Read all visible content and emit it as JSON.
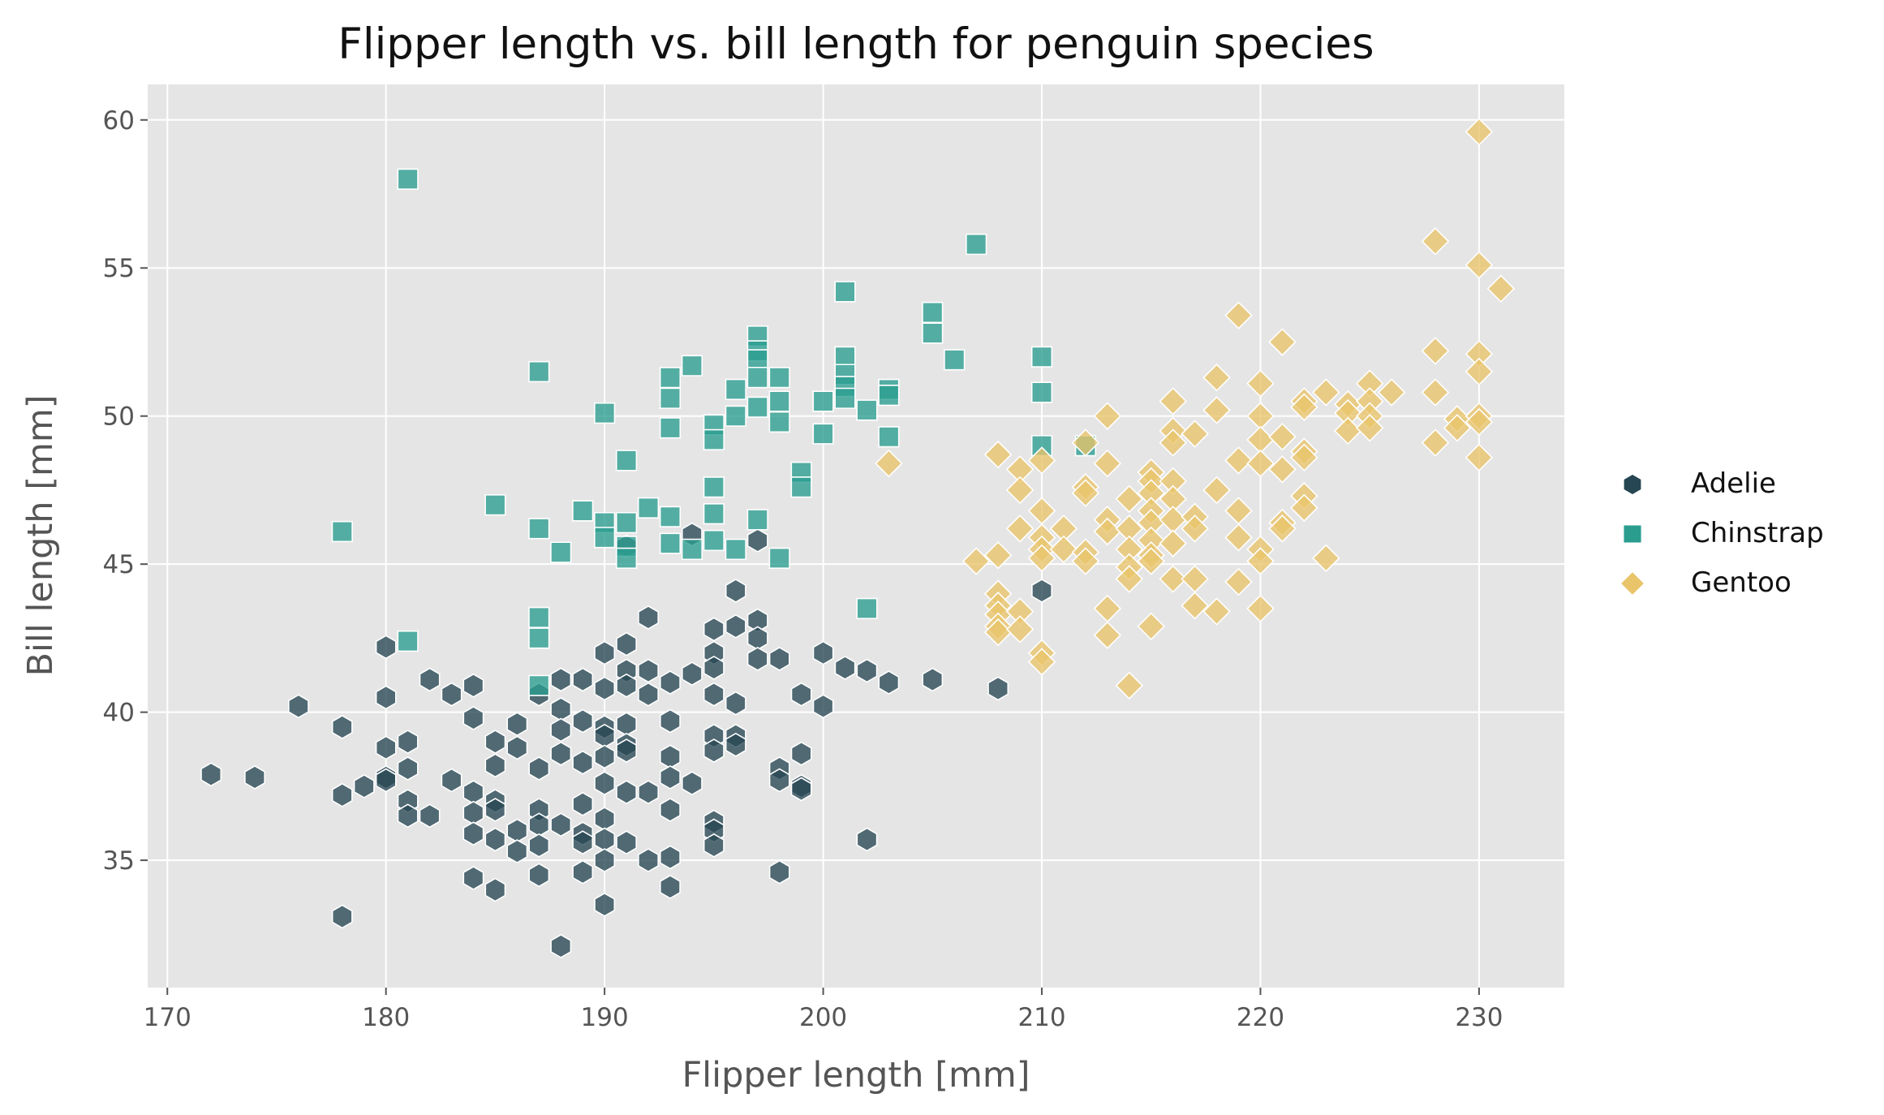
{
  "chart_data": {
    "type": "scatter",
    "title": "Flipper length vs. bill length for penguin species",
    "xlabel": "Flipper length [mm]",
    "ylabel": "Bill length [mm]",
    "xlim": [
      169.1,
      233.9
    ],
    "ylim": [
      30.7,
      61.2
    ],
    "xticks": [
      170,
      180,
      190,
      200,
      210,
      220,
      230
    ],
    "yticks": [
      35,
      40,
      45,
      50,
      55,
      60
    ],
    "grid": true,
    "legend_position": "right",
    "series": [
      {
        "name": "Adelie",
        "marker": "hexagon",
        "color": "#264653",
        "points": [
          [
            172,
            37.9
          ],
          [
            174,
            37.8
          ],
          [
            176,
            40.2
          ],
          [
            178,
            39.5
          ],
          [
            178,
            37.2
          ],
          [
            178,
            33.1
          ],
          [
            179,
            37.5
          ],
          [
            180,
            42.2
          ],
          [
            180,
            40.5
          ],
          [
            180,
            38.8
          ],
          [
            180,
            37.8
          ],
          [
            180,
            37.7
          ],
          [
            181,
            39.0
          ],
          [
            181,
            38.1
          ],
          [
            181,
            37.0
          ],
          [
            181,
            36.5
          ],
          [
            182,
            41.1
          ],
          [
            182,
            36.5
          ],
          [
            183,
            40.6
          ],
          [
            183,
            37.7
          ],
          [
            184,
            40.9
          ],
          [
            184,
            39.8
          ],
          [
            184,
            37.3
          ],
          [
            184,
            36.6
          ],
          [
            184,
            35.9
          ],
          [
            184,
            34.4
          ],
          [
            185,
            39.0
          ],
          [
            185,
            38.2
          ],
          [
            185,
            37.0
          ],
          [
            185,
            36.7
          ],
          [
            185,
            35.7
          ],
          [
            185,
            34.0
          ],
          [
            186,
            39.6
          ],
          [
            186,
            38.8
          ],
          [
            186,
            36.0
          ],
          [
            186,
            35.3
          ],
          [
            187,
            40.6
          ],
          [
            187,
            38.1
          ],
          [
            187,
            36.7
          ],
          [
            187,
            36.2
          ],
          [
            187,
            35.5
          ],
          [
            187,
            34.5
          ],
          [
            188,
            41.1
          ],
          [
            188,
            40.1
          ],
          [
            188,
            39.4
          ],
          [
            188,
            38.6
          ],
          [
            188,
            36.2
          ],
          [
            188,
            32.1
          ],
          [
            189,
            41.1
          ],
          [
            189,
            39.7
          ],
          [
            189,
            38.3
          ],
          [
            189,
            36.9
          ],
          [
            189,
            35.9
          ],
          [
            189,
            35.6
          ],
          [
            189,
            34.6
          ],
          [
            190,
            42.0
          ],
          [
            190,
            40.8
          ],
          [
            190,
            39.5
          ],
          [
            190,
            39.2
          ],
          [
            190,
            38.5
          ],
          [
            190,
            37.6
          ],
          [
            190,
            36.4
          ],
          [
            190,
            35.7
          ],
          [
            190,
            35.0
          ],
          [
            190,
            33.5
          ],
          [
            191,
            45.6
          ],
          [
            191,
            42.3
          ],
          [
            191,
            41.4
          ],
          [
            191,
            40.9
          ],
          [
            191,
            39.6
          ],
          [
            191,
            38.9
          ],
          [
            191,
            38.7
          ],
          [
            191,
            37.3
          ],
          [
            191,
            35.6
          ],
          [
            192,
            43.2
          ],
          [
            192,
            41.4
          ],
          [
            192,
            40.6
          ],
          [
            192,
            37.3
          ],
          [
            192,
            35.0
          ],
          [
            193,
            41.0
          ],
          [
            193,
            39.7
          ],
          [
            193,
            38.5
          ],
          [
            193,
            37.8
          ],
          [
            193,
            36.7
          ],
          [
            193,
            35.1
          ],
          [
            193,
            34.1
          ],
          [
            194,
            46.0
          ],
          [
            194,
            41.3
          ],
          [
            194,
            37.6
          ],
          [
            195,
            42.8
          ],
          [
            195,
            42.0
          ],
          [
            195,
            41.5
          ],
          [
            195,
            40.6
          ],
          [
            195,
            39.2
          ],
          [
            195,
            38.7
          ],
          [
            195,
            36.3
          ],
          [
            195,
            36.0
          ],
          [
            195,
            35.5
          ],
          [
            196,
            44.1
          ],
          [
            196,
            42.9
          ],
          [
            196,
            40.3
          ],
          [
            196,
            39.2
          ],
          [
            196,
            38.9
          ],
          [
            197,
            45.8
          ],
          [
            197,
            43.1
          ],
          [
            197,
            42.5
          ],
          [
            197,
            41.8
          ],
          [
            198,
            41.8
          ],
          [
            198,
            38.1
          ],
          [
            198,
            37.7
          ],
          [
            198,
            34.6
          ],
          [
            199,
            40.6
          ],
          [
            199,
            38.6
          ],
          [
            199,
            37.5
          ],
          [
            199,
            37.4
          ],
          [
            200,
            42.0
          ],
          [
            200,
            40.2
          ],
          [
            201,
            41.5
          ],
          [
            202,
            41.4
          ],
          [
            202,
            35.7
          ],
          [
            203,
            41.0
          ],
          [
            205,
            41.1
          ],
          [
            208,
            40.8
          ],
          [
            210,
            44.1
          ]
        ]
      },
      {
        "name": "Chinstrap",
        "marker": "square",
        "color": "#2a9d8f",
        "points": [
          [
            178,
            46.1
          ],
          [
            181,
            58.0
          ],
          [
            181,
            42.4
          ],
          [
            185,
            47.0
          ],
          [
            187,
            51.5
          ],
          [
            187,
            46.2
          ],
          [
            187,
            43.2
          ],
          [
            187,
            42.5
          ],
          [
            187,
            40.9
          ],
          [
            188,
            45.4
          ],
          [
            189,
            46.8
          ],
          [
            190,
            50.1
          ],
          [
            190,
            46.4
          ],
          [
            190,
            45.9
          ],
          [
            191,
            48.5
          ],
          [
            191,
            46.4
          ],
          [
            191,
            45.6
          ],
          [
            191,
            45.2
          ],
          [
            192,
            46.9
          ],
          [
            193,
            51.3
          ],
          [
            193,
            50.6
          ],
          [
            193,
            49.6
          ],
          [
            193,
            46.6
          ],
          [
            193,
            45.7
          ],
          [
            194,
            51.7
          ],
          [
            194,
            45.5
          ],
          [
            195,
            49.7
          ],
          [
            195,
            49.2
          ],
          [
            195,
            47.6
          ],
          [
            195,
            46.7
          ],
          [
            195,
            45.8
          ],
          [
            196,
            50.9
          ],
          [
            196,
            50.0
          ],
          [
            196,
            45.5
          ],
          [
            197,
            52.7
          ],
          [
            197,
            52.2
          ],
          [
            197,
            51.9
          ],
          [
            197,
            51.3
          ],
          [
            197,
            50.3
          ],
          [
            197,
            46.5
          ],
          [
            198,
            51.3
          ],
          [
            198,
            50.5
          ],
          [
            198,
            49.8
          ],
          [
            198,
            45.2
          ],
          [
            199,
            48.1
          ],
          [
            199,
            47.6
          ],
          [
            200,
            50.5
          ],
          [
            200,
            49.4
          ],
          [
            201,
            54.2
          ],
          [
            201,
            52.0
          ],
          [
            201,
            51.4
          ],
          [
            201,
            51.0
          ],
          [
            201,
            50.6
          ],
          [
            202,
            50.2
          ],
          [
            202,
            43.5
          ],
          [
            203,
            50.9
          ],
          [
            203,
            50.7
          ],
          [
            203,
            49.3
          ],
          [
            205,
            53.5
          ],
          [
            205,
            52.8
          ],
          [
            206,
            51.9
          ],
          [
            207,
            55.8
          ],
          [
            210,
            52.0
          ],
          [
            210,
            50.8
          ],
          [
            210,
            49.0
          ],
          [
            212,
            49.0
          ]
        ]
      },
      {
        "name": "Gentoo",
        "marker": "diamond",
        "color": "#e9c46a",
        "points": [
          [
            203,
            48.4
          ],
          [
            207,
            45.1
          ],
          [
            208,
            48.7
          ],
          [
            208,
            45.3
          ],
          [
            208,
            44.0
          ],
          [
            208,
            43.6
          ],
          [
            208,
            43.3
          ],
          [
            208,
            42.9
          ],
          [
            208,
            42.7
          ],
          [
            209,
            48.2
          ],
          [
            209,
            47.5
          ],
          [
            209,
            46.2
          ],
          [
            209,
            43.4
          ],
          [
            209,
            42.8
          ],
          [
            210,
            48.5
          ],
          [
            210,
            46.8
          ],
          [
            210,
            45.9
          ],
          [
            210,
            45.5
          ],
          [
            210,
            45.2
          ],
          [
            210,
            42.0
          ],
          [
            210,
            41.7
          ],
          [
            211,
            46.2
          ],
          [
            211,
            45.5
          ],
          [
            212,
            49.1
          ],
          [
            212,
            47.6
          ],
          [
            212,
            47.4
          ],
          [
            212,
            45.4
          ],
          [
            212,
            45.1
          ],
          [
            213,
            50.0
          ],
          [
            213,
            48.4
          ],
          [
            213,
            46.5
          ],
          [
            213,
            46.1
          ],
          [
            213,
            43.5
          ],
          [
            213,
            42.6
          ],
          [
            214,
            47.2
          ],
          [
            214,
            46.2
          ],
          [
            214,
            45.5
          ],
          [
            214,
            44.9
          ],
          [
            214,
            44.5
          ],
          [
            214,
            40.9
          ],
          [
            215,
            48.1
          ],
          [
            215,
            47.8
          ],
          [
            215,
            47.4
          ],
          [
            215,
            46.8
          ],
          [
            215,
            46.4
          ],
          [
            215,
            45.8
          ],
          [
            215,
            45.3
          ],
          [
            215,
            45.1
          ],
          [
            215,
            42.9
          ],
          [
            216,
            50.5
          ],
          [
            216,
            49.5
          ],
          [
            216,
            49.1
          ],
          [
            216,
            47.8
          ],
          [
            216,
            47.2
          ],
          [
            216,
            46.5
          ],
          [
            216,
            45.7
          ],
          [
            216,
            44.5
          ],
          [
            217,
            49.4
          ],
          [
            217,
            46.6
          ],
          [
            217,
            46.2
          ],
          [
            217,
            44.5
          ],
          [
            217,
            43.6
          ],
          [
            218,
            51.3
          ],
          [
            218,
            50.2
          ],
          [
            218,
            47.5
          ],
          [
            218,
            43.4
          ],
          [
            219,
            53.4
          ],
          [
            219,
            48.5
          ],
          [
            219,
            46.8
          ],
          [
            219,
            45.9
          ],
          [
            219,
            44.4
          ],
          [
            220,
            51.1
          ],
          [
            220,
            50.0
          ],
          [
            220,
            49.2
          ],
          [
            220,
            48.4
          ],
          [
            220,
            45.5
          ],
          [
            220,
            45.1
          ],
          [
            220,
            43.5
          ],
          [
            221,
            52.5
          ],
          [
            221,
            49.3
          ],
          [
            221,
            48.2
          ],
          [
            221,
            46.4
          ],
          [
            221,
            46.2
          ],
          [
            222,
            50.5
          ],
          [
            222,
            50.3
          ],
          [
            222,
            48.8
          ],
          [
            222,
            48.6
          ],
          [
            222,
            47.3
          ],
          [
            222,
            46.9
          ],
          [
            223,
            50.8
          ],
          [
            223,
            45.2
          ],
          [
            224,
            50.4
          ],
          [
            224,
            50.1
          ],
          [
            224,
            49.5
          ],
          [
            225,
            51.1
          ],
          [
            225,
            50.5
          ],
          [
            225,
            50.0
          ],
          [
            225,
            49.6
          ],
          [
            226,
            50.8
          ],
          [
            228,
            55.9
          ],
          [
            228,
            52.2
          ],
          [
            228,
            50.8
          ],
          [
            228,
            49.1
          ],
          [
            229,
            49.9
          ],
          [
            229,
            49.6
          ],
          [
            230,
            59.6
          ],
          [
            230,
            55.1
          ],
          [
            230,
            52.1
          ],
          [
            230,
            51.5
          ],
          [
            230,
            50.0
          ],
          [
            230,
            49.8
          ],
          [
            230,
            48.6
          ],
          [
            231,
            54.3
          ]
        ]
      }
    ]
  }
}
